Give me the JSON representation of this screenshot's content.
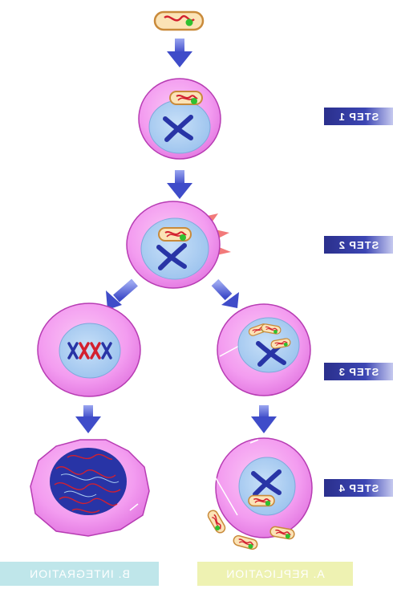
{
  "diagram": {
    "steps": [
      {
        "label": "STEP 1"
      },
      {
        "label": "STEP 2"
      },
      {
        "label": "STEP 3"
      },
      {
        "label": "STEP 4"
      }
    ],
    "pathways": [
      {
        "label": "B. INTEGRATION",
        "color": "#bfe6ea"
      },
      {
        "label": "A. REPLICATION",
        "color": "#eef2b2"
      }
    ],
    "colors": {
      "cell_fill": "#f39cf0",
      "cell_edge": "#b73cb3",
      "nucleus_fill": "#a9cdf2",
      "chromosome_blue": "#2834a6",
      "chromosome_red": "#d3202f",
      "bacterium_fill": "#fbe3b6",
      "bacterium_edge": "#c98a3a",
      "green_dot": "#2fc02f",
      "arrow": "#3f4cc9",
      "spike": "#f27a7a",
      "step_label_bg": "#3a44b0"
    }
  }
}
